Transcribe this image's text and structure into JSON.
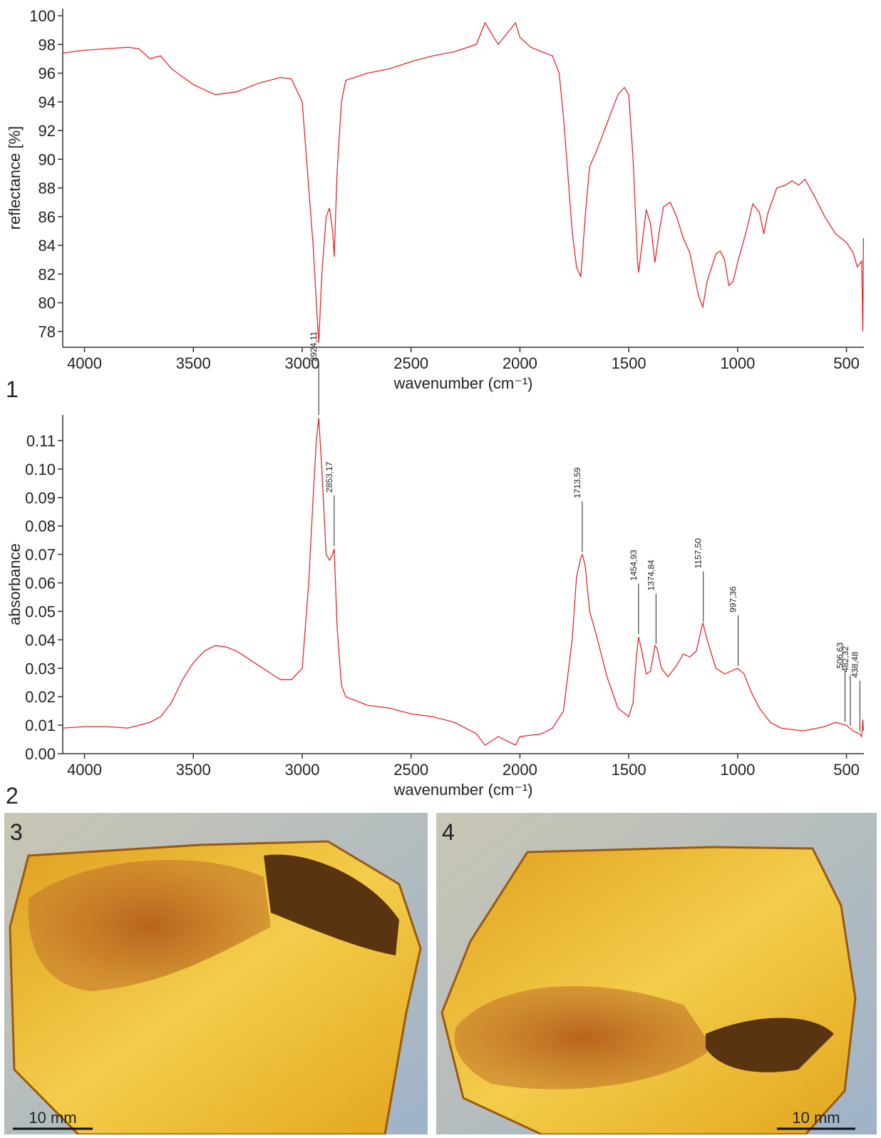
{
  "chart_data": [
    {
      "type": "line",
      "panel_label": "1",
      "x_label": "wavenumber (cm⁻¹)",
      "y_label": "reflectance [%]",
      "color": "#e8262a",
      "xlim": [
        4100,
        420
      ],
      "xticks": [
        4000,
        3500,
        3000,
        2500,
        2000,
        1500,
        1000,
        500
      ],
      "ylim": [
        76.9,
        100.5
      ],
      "yticks": [
        78,
        80,
        82,
        84,
        86,
        88,
        90,
        92,
        94,
        96,
        98,
        100
      ],
      "x": [
        4100,
        4000,
        3900,
        3800,
        3750,
        3700,
        3650,
        3600,
        3500,
        3400,
        3300,
        3200,
        3100,
        3050,
        3000,
        2970,
        2950,
        2935,
        2924,
        2910,
        2890,
        2875,
        2860,
        2853,
        2840,
        2820,
        2800,
        2700,
        2600,
        2500,
        2400,
        2300,
        2200,
        2160,
        2100,
        2020,
        2000,
        1950,
        1900,
        1850,
        1820,
        1800,
        1780,
        1760,
        1740,
        1720,
        1700,
        1680,
        1650,
        1600,
        1550,
        1520,
        1500,
        1480,
        1460,
        1455,
        1440,
        1420,
        1400,
        1380,
        1360,
        1340,
        1310,
        1280,
        1250,
        1220,
        1200,
        1180,
        1160,
        1140,
        1100,
        1080,
        1060,
        1040,
        1020,
        1000,
        960,
        930,
        900,
        880,
        860,
        820,
        780,
        750,
        720,
        690,
        650,
        600,
        550,
        500,
        470,
        450,
        430,
        425,
        422
      ],
      "values": [
        97.4,
        97.6,
        97.7,
        97.8,
        97.7,
        97.0,
        97.2,
        96.3,
        95.2,
        94.5,
        94.7,
        95.3,
        95.7,
        95.6,
        94,
        88,
        84,
        80,
        77.2,
        82,
        86,
        86.6,
        85,
        83.2,
        89,
        94,
        95.5,
        96.0,
        96.3,
        96.8,
        97.2,
        97.5,
        98,
        99.5,
        98,
        99.5,
        98.5,
        97.8,
        97.5,
        97.2,
        96,
        93,
        89,
        85,
        82.5,
        81.8,
        86,
        89.5,
        90.5,
        92.5,
        94.5,
        95,
        94.5,
        90,
        83,
        82.1,
        84,
        86.5,
        85.5,
        82.8,
        85,
        86.7,
        87,
        86,
        84.5,
        83.5,
        82,
        80.5,
        79.7,
        81.5,
        83.4,
        83.6,
        83,
        81.2,
        81.5,
        82.8,
        85,
        86.9,
        86.3,
        84.8,
        86.3,
        88,
        88.2,
        88.5,
        88.2,
        88.6,
        87.5,
        86,
        84.8,
        84.2,
        83.5,
        82.5,
        82.9,
        78.0,
        84.5
      ]
    },
    {
      "type": "line",
      "panel_label": "2",
      "x_label": "wavenumber (cm⁻¹)",
      "y_label": "absorbance",
      "color": "#e8262a",
      "xlim": [
        4100,
        420
      ],
      "xticks": [
        4000,
        3500,
        3000,
        2500,
        2000,
        1500,
        1000,
        500
      ],
      "ylim": [
        0,
        0.119
      ],
      "yticks": [
        {
          "value": 0,
          "label": "0.00"
        },
        0.01,
        0.02,
        0.03,
        0.04,
        0.05,
        0.06,
        0.07,
        0.08,
        0.09,
        {
          "value": 0.1,
          "label": "0.10"
        },
        0.11
      ],
      "x": [
        4100,
        4000,
        3900,
        3800,
        3700,
        3650,
        3600,
        3550,
        3500,
        3450,
        3400,
        3350,
        3300,
        3200,
        3100,
        3050,
        3000,
        2970,
        2950,
        2935,
        2924,
        2910,
        2890,
        2875,
        2860,
        2853,
        2840,
        2820,
        2800,
        2700,
        2600,
        2500,
        2400,
        2300,
        2200,
        2160,
        2100,
        2020,
        2000,
        1900,
        1850,
        1800,
        1760,
        1740,
        1720,
        1713,
        1700,
        1680,
        1650,
        1600,
        1550,
        1500,
        1480,
        1465,
        1455,
        1440,
        1420,
        1400,
        1380,
        1370,
        1350,
        1320,
        1280,
        1250,
        1220,
        1190,
        1160,
        1140,
        1100,
        1060,
        1030,
        1000,
        970,
        940,
        900,
        850,
        800,
        700,
        600,
        550,
        500,
        470,
        440,
        430,
        425,
        422
      ],
      "values": [
        0.009,
        0.0095,
        0.0095,
        0.009,
        0.011,
        0.013,
        0.018,
        0.026,
        0.032,
        0.036,
        0.038,
        0.0375,
        0.036,
        0.031,
        0.026,
        0.026,
        0.03,
        0.06,
        0.09,
        0.11,
        0.118,
        0.1,
        0.07,
        0.068,
        0.07,
        0.072,
        0.045,
        0.024,
        0.02,
        0.017,
        0.016,
        0.014,
        0.013,
        0.011,
        0.007,
        0.003,
        0.006,
        0.003,
        0.006,
        0.007,
        0.009,
        0.015,
        0.04,
        0.062,
        0.069,
        0.07,
        0.066,
        0.05,
        0.042,
        0.027,
        0.016,
        0.013,
        0.018,
        0.034,
        0.041,
        0.036,
        0.028,
        0.029,
        0.038,
        0.037,
        0.03,
        0.027,
        0.031,
        0.035,
        0.034,
        0.036,
        0.046,
        0.04,
        0.03,
        0.028,
        0.029,
        0.03,
        0.028,
        0.022,
        0.016,
        0.011,
        0.009,
        0.008,
        0.0095,
        0.011,
        0.01,
        0.008,
        0.007,
        0.006,
        0.012,
        0.008
      ],
      "annotations": [
        {
          "x": 2924.11,
          "label": "2924,11"
        },
        {
          "x": 2853.17,
          "label": "2853,17"
        },
        {
          "x": 1713.59,
          "label": "1713,59"
        },
        {
          "x": 1454.93,
          "label": "1454,93"
        },
        {
          "x": 1374.84,
          "label": "1374,84"
        },
        {
          "x": 1157.5,
          "label": "1157,50"
        },
        {
          "x": 997.36,
          "label": "997,36"
        },
        {
          "x": 506.63,
          "label": "506,63"
        },
        {
          "x": 482.32,
          "label": "482,32"
        },
        {
          "x": 438.48,
          "label": "438,48"
        }
      ]
    }
  ],
  "photos": [
    {
      "label": "3",
      "scale_bar": "10 mm"
    },
    {
      "label": "4",
      "scale_bar": "10 mm"
    }
  ]
}
